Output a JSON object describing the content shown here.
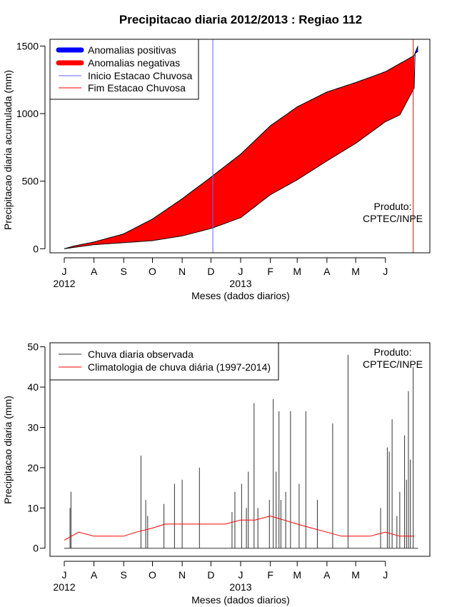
{
  "chart_data": [
    {
      "type": "area",
      "title": "Precipitacao diaria 2012/2013 : Regiao 112",
      "xlabel": "Meses (dados diarios)",
      "ylabel": "Precipitacao diaria acumulada (mm)",
      "ylim": [
        -30,
        1550
      ],
      "yticks": [
        0,
        500,
        1000,
        1500
      ],
      "months": [
        "J",
        "A",
        "S",
        "O",
        "N",
        "D",
        "J",
        "F",
        "M",
        "A",
        "M",
        "J"
      ],
      "year_labels": [
        {
          "label": "2012",
          "month_index": 0
        },
        {
          "label": "2013",
          "month_index": 6
        }
      ],
      "legend": [
        "Anomalias positivas",
        "Anomalias negativas",
        "Inicio Estacao Chuvosa",
        "Fim Estacao Chuvosa"
      ],
      "legend_position": "top-left",
      "colors": {
        "positive": "#0000ff",
        "negative": "#ff0000",
        "start": "#6666ff",
        "end": "#ff0000"
      },
      "annotation": [
        "Produto:",
        "CPTEC/INPE"
      ],
      "rainy_season_start_day": 155,
      "rainy_season_end_day": 364,
      "observed_accumulated": {
        "day": [
          0,
          10,
          31,
          62,
          92,
          123,
          153,
          184,
          215,
          243,
          274,
          304,
          335,
          350,
          365,
          366,
          369
        ],
        "mm": [
          0,
          10,
          30,
          45,
          60,
          95,
          150,
          230,
          400,
          510,
          650,
          780,
          940,
          990,
          1190,
          1450,
          1500
        ]
      },
      "climatology_accumulated": {
        "day": [
          0,
          10,
          31,
          62,
          92,
          123,
          153,
          184,
          215,
          243,
          274,
          304,
          335,
          350,
          365,
          366,
          369
        ],
        "mm": [
          0,
          20,
          50,
          110,
          220,
          370,
          530,
          700,
          910,
          1050,
          1160,
          1230,
          1310,
          1370,
          1430,
          1445,
          1460
        ]
      }
    },
    {
      "type": "bar",
      "xlabel": "Meses (dados diarios)",
      "ylabel": "Precipitacao diaria (mm)",
      "ylim": [
        -2,
        51
      ],
      "yticks": [
        0,
        10,
        20,
        30,
        40,
        50
      ],
      "months": [
        "J",
        "A",
        "S",
        "O",
        "N",
        "D",
        "J",
        "F",
        "M",
        "A",
        "M",
        "J"
      ],
      "year_labels": [
        {
          "label": "2012",
          "month_index": 0
        },
        {
          "label": "2013",
          "month_index": 6
        }
      ],
      "legend": [
        "Chuva diaria observada",
        "Climatologia de chuva diária (1997-2014)"
      ],
      "legend_position": "top-left",
      "colors": {
        "observed": "#333333",
        "climatology": "#ff0000"
      },
      "annotation": [
        "Produto:",
        "CPTEC/INPE"
      ],
      "observed_daily_peaks": {
        "day": [
          6,
          7,
          80,
          85,
          87,
          104,
          115,
          123,
          141,
          175,
          178,
          185,
          190,
          192,
          198,
          202,
          214,
          218,
          221,
          224,
          226,
          231,
          236,
          245,
          252,
          264,
          280,
          296,
          330,
          337,
          339,
          342,
          347,
          350,
          355,
          357,
          359,
          361,
          364
        ],
        "mm": [
          10,
          14,
          23,
          12,
          8,
          11,
          16,
          17,
          20,
          9,
          14,
          16,
          10,
          19,
          36,
          10,
          12,
          37,
          19,
          34,
          12,
          14,
          34,
          16,
          34,
          12,
          31,
          48,
          10,
          25,
          24,
          32,
          8,
          14,
          28,
          17,
          39,
          22,
          45
        ]
      },
      "climatology_daily": {
        "day": [
          0,
          15,
          31,
          45,
          62,
          75,
          92,
          105,
          123,
          138,
          153,
          168,
          184,
          199,
          215,
          229,
          243,
          258,
          274,
          289,
          304,
          319,
          335,
          350,
          365
        ],
        "mm": [
          2,
          4,
          3,
          3,
          3,
          4,
          5,
          6,
          6,
          6,
          6,
          6,
          7,
          7,
          8,
          7,
          6,
          5,
          4,
          3,
          3,
          3,
          4,
          3,
          3
        ]
      }
    }
  ]
}
